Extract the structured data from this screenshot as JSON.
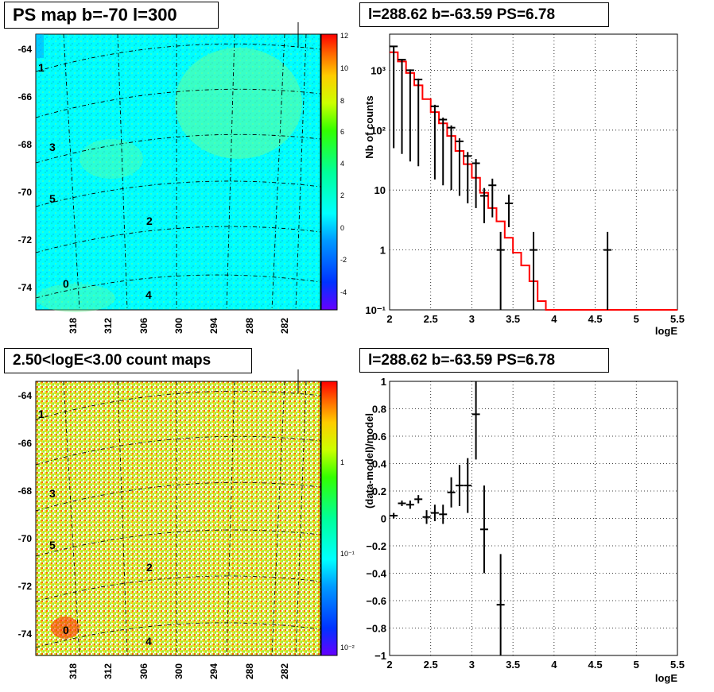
{
  "panels": {
    "top_left_title": "PS map b=-70 l=300",
    "top_right_title": "l=288.62 b=-63.59 PS=6.78",
    "bottom_left_title": "2.50<logE<3.00 count maps",
    "bottom_right_title": "l=288.62 b=-63.59 PS=6.78"
  },
  "colors": {
    "model_line": "#ff0000",
    "data_marker": "#000000",
    "map_background_top": "#00ffff",
    "map_background_bottom": "#ccee44"
  },
  "maps": {
    "y_ticks": [
      "-64",
      "-66",
      "-68",
      "-70",
      "-72",
      "-74"
    ],
    "x_ticks": [
      "318",
      "312",
      "306",
      "300",
      "294",
      "288",
      "282"
    ],
    "source_labels": [
      "1",
      "3",
      "5",
      "2",
      "0",
      "4"
    ],
    "ps_colorbar_ticks": [
      "12",
      "10",
      "8",
      "6",
      "4",
      "2",
      "0",
      "-2",
      "-4"
    ],
    "count_colorbar_ticks": [
      "1",
      "10⁻¹",
      "10⁻²"
    ]
  },
  "chart_data": [
    {
      "type": "line",
      "subtype": "histogram-with-errorbars",
      "title": "l=288.62 b=-63.59 PS=6.78",
      "xlabel": "logE",
      "ylabel": "Nb of counts",
      "xlim": [
        2,
        5.5
      ],
      "ylim": [
        0.1,
        4000
      ],
      "yscale": "log",
      "grid": true,
      "x_ticks": [
        "2",
        "2.5",
        "3",
        "3.5",
        "4",
        "4.5",
        "5",
        "5.5"
      ],
      "y_ticks": [
        "10⁻¹",
        "1",
        "10",
        "10²",
        "10³"
      ],
      "model": {
        "bin_edges": [
          2.0,
          2.1,
          2.2,
          2.3,
          2.4,
          2.5,
          2.6,
          2.7,
          2.8,
          2.9,
          3.0,
          3.1,
          3.2,
          3.3,
          3.4,
          3.5,
          3.6,
          3.7,
          3.8,
          3.9,
          4.0,
          5.5
        ],
        "values": [
          2000,
          1400,
          900,
          560,
          330,
          200,
          130,
          80,
          45,
          27,
          16,
          9,
          5,
          3,
          1.6,
          0.9,
          0.55,
          0.3,
          0.14,
          0.1,
          0.1
        ]
      },
      "data": {
        "x": [
          2.05,
          2.15,
          2.25,
          2.35,
          2.55,
          2.65,
          2.75,
          2.85,
          2.95,
          3.05,
          3.15,
          3.25,
          3.35,
          3.45,
          3.75,
          4.65
        ],
        "y": [
          2500,
          1500,
          1000,
          700,
          250,
          150,
          110,
          65,
          37,
          28,
          8,
          12,
          1,
          6,
          1,
          1
        ],
        "y_err_low": [
          2450,
          1460,
          970,
          675,
          235,
          138,
          100,
          57,
          31,
          23,
          5.2,
          8.5,
          0.9,
          3.6,
          0.9,
          0.9
        ],
        "y_err_high": [
          2550,
          1540,
          1030,
          725,
          265,
          162,
          120,
          73,
          43,
          33,
          10.8,
          15.5,
          2,
          8.4,
          2,
          2
        ]
      }
    },
    {
      "type": "scatter",
      "subtype": "errorbars",
      "title": "l=288.62 b=-63.59 PS=6.78",
      "xlabel": "logE",
      "ylabel": "(data-model)/model",
      "xlim": [
        2,
        5.5
      ],
      "ylim": [
        -1,
        1
      ],
      "grid": true,
      "x_ticks": [
        "2",
        "2.5",
        "3",
        "3.5",
        "4",
        "4.5",
        "5",
        "5.5"
      ],
      "y_ticks": [
        "−1",
        "−0.8",
        "−0.6",
        "−0.4",
        "−0.2",
        "0",
        "0.2",
        "0.4",
        "0.6",
        "0.8",
        "1"
      ],
      "x": [
        2.05,
        2.15,
        2.25,
        2.35,
        2.45,
        2.55,
        2.65,
        2.75,
        2.85,
        2.95,
        3.05,
        3.15,
        3.35
      ],
      "y": [
        0.02,
        0.11,
        0.1,
        0.14,
        0.01,
        0.04,
        0.03,
        0.19,
        0.24,
        0.24,
        0.76,
        -0.08,
        -0.63
      ],
      "y_err": [
        0.02,
        0.02,
        0.03,
        0.03,
        0.05,
        0.06,
        0.07,
        0.11,
        0.15,
        0.2,
        0.33,
        0.32,
        0.37
      ]
    }
  ]
}
